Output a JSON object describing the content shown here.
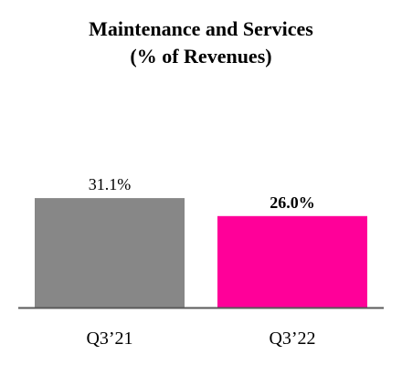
{
  "chart_data": {
    "type": "bar",
    "title_lines": [
      "Maintenance and Services",
      "(% of Revenues)"
    ],
    "categories": [
      "Q3’21",
      "Q3’22"
    ],
    "values": [
      31.1,
      26.0
    ],
    "value_labels": [
      "31.1%",
      "26.0%"
    ],
    "value_label_bold": [
      false,
      true
    ],
    "bar_colors": [
      "#878787",
      "#ff0099"
    ],
    "axis_color": "#595959",
    "xlabel": "",
    "ylabel": "",
    "ylim": [
      0,
      41.5
    ],
    "grid": false,
    "legend": "none"
  }
}
